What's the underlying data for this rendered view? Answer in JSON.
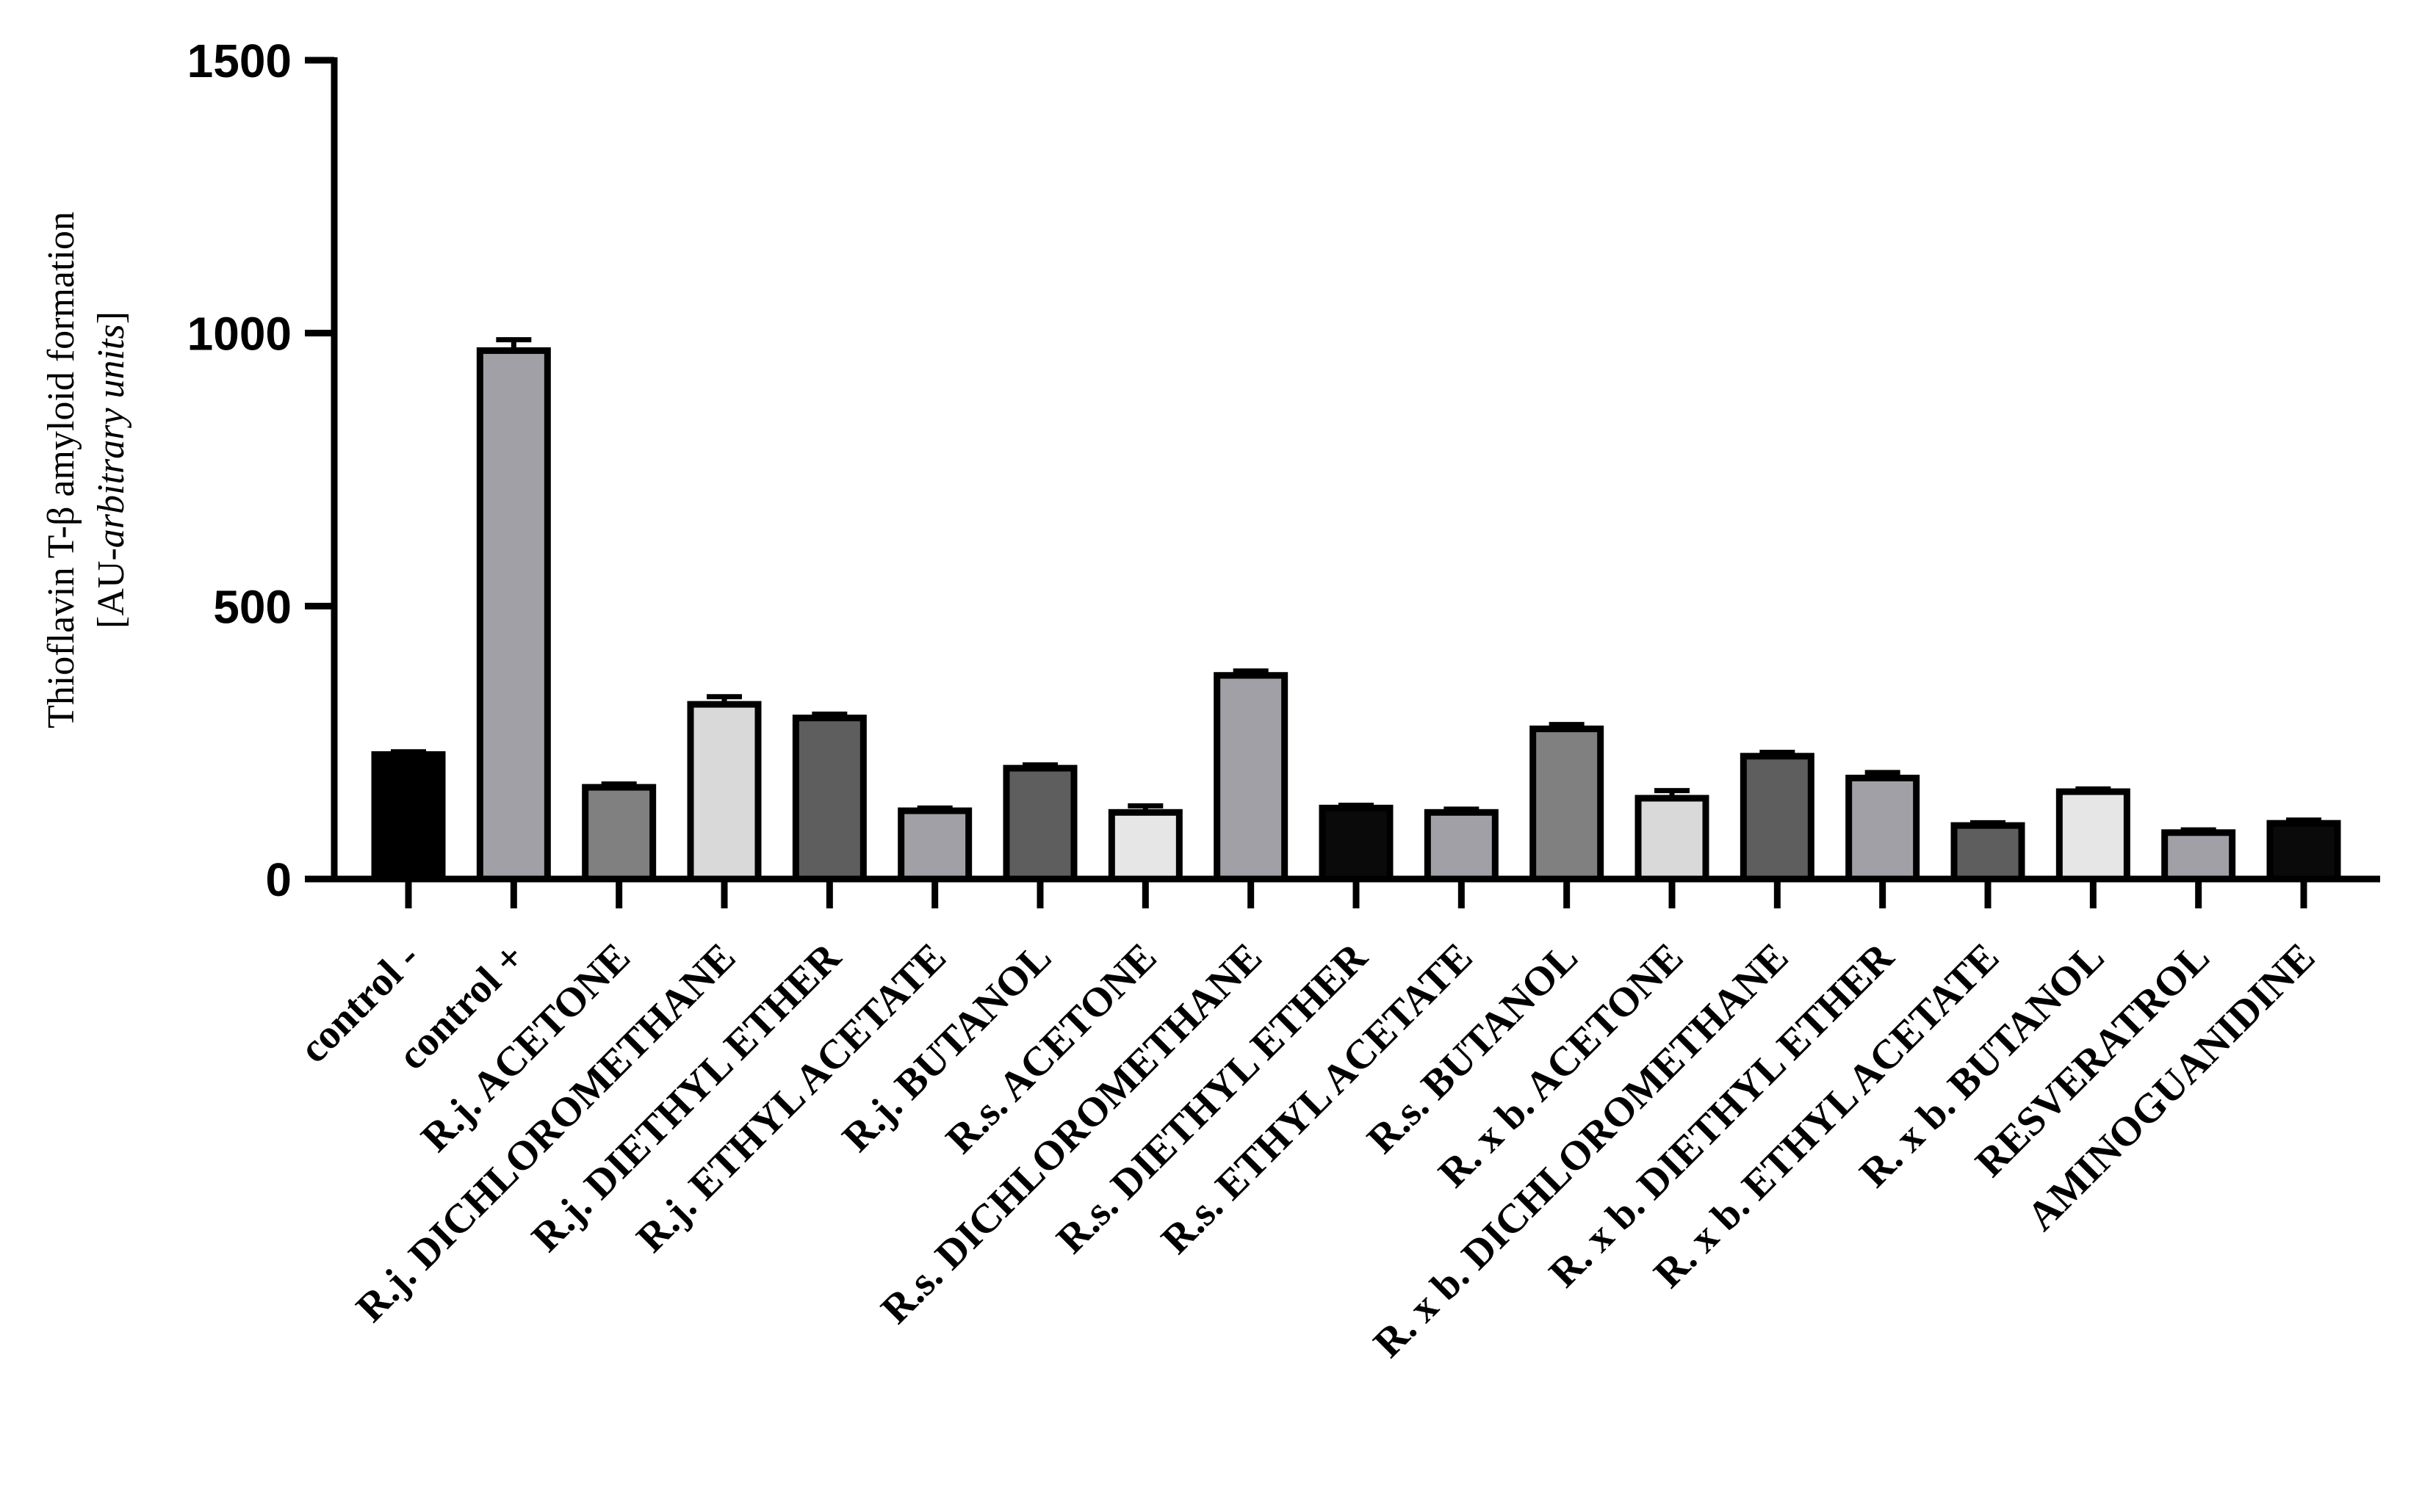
{
  "chart_data": {
    "type": "bar",
    "title": "",
    "ylabel_line1": "Thioflavin T-β amyloid formation",
    "ylabel_line2_prefix": "[AU-",
    "ylabel_line2_italic": "arbitrary units",
    "ylabel_line2_suffix": "]",
    "ylim": [
      0,
      1500
    ],
    "yticks": [
      0,
      500,
      1000,
      1500
    ],
    "categories": [
      "control -",
      "control +",
      "R.j. ACETONE",
      "R.j. DICHLOROMETHANE",
      "R.j. DIETHYL ETHER",
      "R.j. ETHYL ACETATE",
      "R.j. BUTANOL",
      "R.s. ACETONE",
      "R.s. DICHLOROMETHANE",
      "R.s. DIETHYL ETHER",
      "R.s. ETHYL ACETATE",
      "R.s. BUTANOL",
      "R. x b. ACETONE",
      "R. x b. DICHLOROMETHANE",
      "R. x b.  DIETHYL ETHER",
      "R. x b.  ETHYL ACETATE",
      "R. x b. BUTANOL",
      "RESVERATROL",
      "AMINOGUANIDINE"
    ],
    "values": [
      228,
      968,
      168,
      320,
      295,
      125,
      203,
      122,
      373,
      130,
      122,
      275,
      148,
      225,
      185,
      98,
      160,
      85,
      102
    ],
    "errors": [
      5,
      20,
      6,
      14,
      7,
      5,
      6,
      12,
      8,
      5,
      6,
      8,
      14,
      7,
      10,
      5,
      5,
      5,
      6
    ],
    "colors": [
      "#000000",
      "#a0a0a6",
      "#808080",
      "#d9d9d9",
      "#5e5e5e",
      "#a0a0a6",
      "#5e5e5e",
      "#e6e6e6",
      "#a0a0a6",
      "#0a0a0a",
      "#a0a0a6",
      "#808080",
      "#d9d9d9",
      "#5e5e5e",
      "#a0a0a6",
      "#5e5e5e",
      "#e6e6e6",
      "#a0a0a6",
      "#0a0a0a"
    ]
  }
}
